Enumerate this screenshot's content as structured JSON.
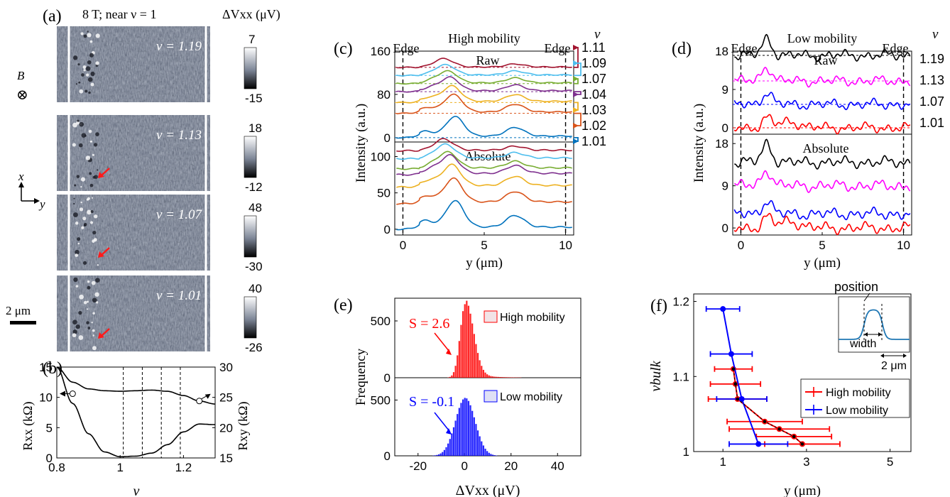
{
  "figure": {
    "panel_labels": [
      "(a)",
      "(b)",
      "(c)",
      "(d)",
      "(e)",
      "(f)"
    ]
  },
  "panel_a": {
    "title": "8 T; near ν = 1",
    "colorbar_unit": "ΔVxx (μV)",
    "field_label": "B",
    "axis_x": "x",
    "axis_y": "y",
    "scalebar": "2 μm",
    "maps": [
      {
        "nu": "ν = 1.19",
        "cmax": "7",
        "cmin": "-15",
        "arrow": false
      },
      {
        "nu": "ν = 1.13",
        "cmax": "18",
        "cmin": "-12",
        "arrow": true
      },
      {
        "nu": "ν = 1.07",
        "cmax": "48",
        "cmin": "-30",
        "arrow": true
      },
      {
        "nu": "ν = 1.01",
        "cmax": "40",
        "cmin": "-26",
        "arrow": true
      }
    ]
  },
  "chart_data": [
    {
      "panel": "(b)",
      "type": "line",
      "xlabel": "ν",
      "ylabel_left": "Rxx (kΩ)",
      "ylabel_right": "Rxy (kΩ)",
      "xlim": [
        0.8,
        1.3
      ],
      "ylim_left": [
        0,
        15
      ],
      "ylim_right": [
        15,
        30
      ],
      "xticks": [
        "0.8",
        "1",
        "1.2"
      ],
      "yticks_left": [
        "0",
        "5",
        "10",
        "15"
      ],
      "yticks_right": [
        "15",
        "20",
        "25",
        "30"
      ],
      "vlines": [
        1.01,
        1.07,
        1.13,
        1.19
      ],
      "series": [
        {
          "axis": "left",
          "x": [
            0.8,
            0.85,
            0.9,
            0.95,
            1.0,
            1.05,
            1.1,
            1.15,
            1.2,
            1.25,
            1.3
          ],
          "y": [
            15,
            9.0,
            4.0,
            1.0,
            0.2,
            0.3,
            0.8,
            2.2,
            4.3,
            5.6,
            5.5
          ]
        },
        {
          "axis": "right",
          "x": [
            0.8,
            0.85,
            0.9,
            0.95,
            1.0,
            1.05,
            1.1,
            1.15,
            1.2,
            1.25,
            1.3
          ],
          "y": [
            30,
            27.5,
            26.4,
            26.1,
            26.0,
            26.1,
            26.2,
            26.0,
            25.3,
            24.4,
            23.9
          ]
        }
      ]
    },
    {
      "panel": "(c)",
      "type": "line",
      "title": "High mobility",
      "edge_label": "Edge",
      "sub_raw": "Raw",
      "sub_abs": "Absolute",
      "xlabel": "y (μm)",
      "ylabel": "Intensity (a.u.)",
      "xlim": [
        -0.5,
        10.5
      ],
      "xticks": [
        "0",
        "5",
        "10"
      ],
      "yticks_raw": [
        "0",
        "80",
        "160"
      ],
      "yticks_abs": [
        "0",
        "50",
        "100"
      ],
      "legend_title": "ν",
      "series_labels": [
        "1.11",
        "1.09",
        "1.07",
        "1.04",
        "1.03",
        "1.02",
        "1.01"
      ],
      "colors": [
        "#a2142f",
        "#4dbeee",
        "#77ac30",
        "#7e2f8e",
        "#edb120",
        "#d95319",
        "#0072bd"
      ],
      "raw_offsets": [
        130,
        115,
        100,
        85,
        65,
        45,
        0
      ],
      "abs_offsets": [
        108,
        97,
        83,
        75,
        58,
        35,
        0
      ]
    },
    {
      "panel": "(d)",
      "type": "line",
      "title": "Low mobility",
      "edge_label": "Edge",
      "sub_raw": "Raw",
      "sub_abs": "Absolute",
      "xlabel": "y (μm)",
      "ylabel": "Intensity (a.u.)",
      "xlim": [
        -0.5,
        10.5
      ],
      "xticks": [
        "0",
        "5",
        "10"
      ],
      "yticks_raw": [
        "0",
        "9",
        "18"
      ],
      "yticks_abs": [
        "0",
        "9",
        "18"
      ],
      "legend_title": "ν",
      "series_labels": [
        "1.19",
        "1.13",
        "1.07",
        "1.01"
      ],
      "colors": [
        "#000000",
        "#ff00ff",
        "#0000ff",
        "#ff0000"
      ],
      "raw_offsets": [
        17,
        11,
        5.5,
        0
      ],
      "abs_offsets": [
        14,
        9,
        3,
        0
      ]
    },
    {
      "panel": "(e)",
      "type": "bar",
      "xlabel": "ΔVxx (μV)",
      "ylabel": "Frequency",
      "xlim": [
        -30,
        50
      ],
      "ylim": [
        0,
        700
      ],
      "xticks": [
        "-20",
        "0",
        "20",
        "40"
      ],
      "yticks": [
        "0",
        "500"
      ],
      "series": [
        {
          "name": "High mobility",
          "skew": "S = 2.6",
          "color": "#ff0000"
        },
        {
          "name": "Low mobility",
          "skew": "S = -0.1",
          "color": "#0000ff"
        }
      ]
    },
    {
      "panel": "(f)",
      "type": "scatter",
      "xlabel": "y (μm)",
      "ylabel": "νbulk",
      "xlim": [
        0.3,
        5.5
      ],
      "ylim": [
        1.0,
        1.21
      ],
      "xticks": [
        "1",
        "3",
        "5"
      ],
      "yticks": [
        "1",
        "1.1",
        "1.2"
      ],
      "series": [
        {
          "name": "High mobility",
          "color": "#ff0000",
          "points": [
            {
              "x": 1.25,
              "y": 1.11,
              "xerr": 0.45
            },
            {
              "x": 1.3,
              "y": 1.09,
              "xerr": 0.6
            },
            {
              "x": 1.35,
              "y": 1.07,
              "xerr": 0.7
            },
            {
              "x": 2.0,
              "y": 1.04,
              "xerr": 0.9
            },
            {
              "x": 2.35,
              "y": 1.03,
              "xerr": 1.2
            },
            {
              "x": 2.7,
              "y": 1.02,
              "xerr": 0.9
            },
            {
              "x": 2.9,
              "y": 1.01,
              "xerr": 0.9
            }
          ]
        },
        {
          "name": "Low mobility",
          "color": "#0000ff",
          "points": [
            {
              "x": 1.0,
              "y": 1.19,
              "xerr": 0.4
            },
            {
              "x": 1.2,
              "y": 1.13,
              "xerr": 0.5
            },
            {
              "x": 1.45,
              "y": 1.07,
              "xerr": 0.6
            },
            {
              "x": 1.85,
              "y": 1.01,
              "xerr": 0.7
            }
          ]
        }
      ],
      "inset": {
        "top_label": "position",
        "bottom_label": "width",
        "scale": "2 μm"
      }
    }
  ]
}
